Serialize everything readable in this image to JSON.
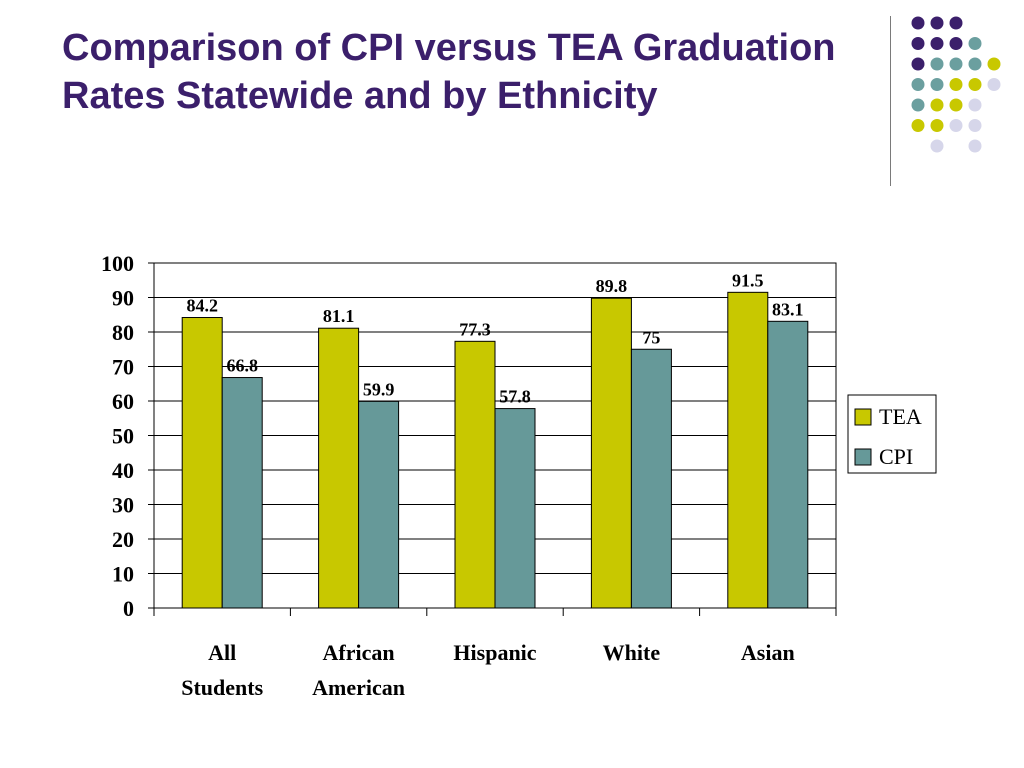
{
  "slide": {
    "title": "Comparison of CPI versus TEA Graduation Rates Statewide and by Ethnicity"
  },
  "colors": {
    "title": "#3b1f6b",
    "tea": "#c8c800",
    "cpi": "#669999",
    "dot_purple": "#3b1f6b",
    "dot_teal": "#6b9f9f",
    "dot_yellow": "#c8c800",
    "dot_lavender": "#d6d6ea"
  },
  "chart_data": {
    "type": "bar",
    "categories": [
      "All\nStudents",
      "African\nAmerican",
      "Hispanic",
      "White",
      "Asian"
    ],
    "series": [
      {
        "name": "TEA",
        "values": [
          84.2,
          81.1,
          77.3,
          89.8,
          91.5
        ],
        "labels": [
          "84.2",
          "81.1",
          "77.3",
          "89.8",
          "91.5"
        ]
      },
      {
        "name": "CPI",
        "values": [
          66.8,
          59.9,
          57.8,
          75,
          83.1
        ],
        "labels": [
          "66.8",
          "59.9",
          "57.8",
          "75",
          "83.1"
        ]
      }
    ],
    "ylim": [
      0,
      100
    ],
    "yticks": [
      0,
      10,
      20,
      30,
      40,
      50,
      60,
      70,
      80,
      90,
      100
    ],
    "grid": true,
    "legend": "right",
    "title": "",
    "xlabel": "",
    "ylabel": ""
  }
}
